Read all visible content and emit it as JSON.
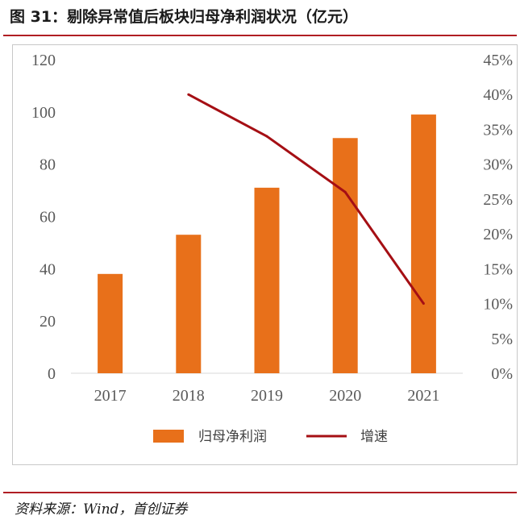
{
  "title": "图 31：剔除异常值后板块归母净利润状况（亿元）",
  "source": "资料来源：Wind，首创证券",
  "colors": {
    "bar": "#E8701A",
    "line": "#A50F14",
    "rule": "#B01E23"
  },
  "chart_data": {
    "type": "bar",
    "categories": [
      "2017",
      "2018",
      "2019",
      "2020",
      "2021"
    ],
    "series": [
      {
        "name": "归母净利润",
        "type": "bar",
        "axis": "left",
        "values": [
          38,
          53,
          71,
          90,
          99
        ]
      },
      {
        "name": "增速",
        "type": "line",
        "axis": "right",
        "values": [
          null,
          0.4,
          0.34,
          0.26,
          0.1
        ]
      }
    ],
    "y_left": {
      "ylim": [
        0,
        120
      ],
      "ticks": [
        "0",
        "20",
        "40",
        "60",
        "80",
        "100",
        "120"
      ]
    },
    "y_right": {
      "ylim": [
        0,
        0.45
      ],
      "ticks": [
        "0%",
        "5%",
        "10%",
        "15%",
        "20%",
        "25%",
        "30%",
        "35%",
        "40%",
        "45%"
      ]
    },
    "legend": {
      "placement": "bottom"
    },
    "grid": false
  }
}
